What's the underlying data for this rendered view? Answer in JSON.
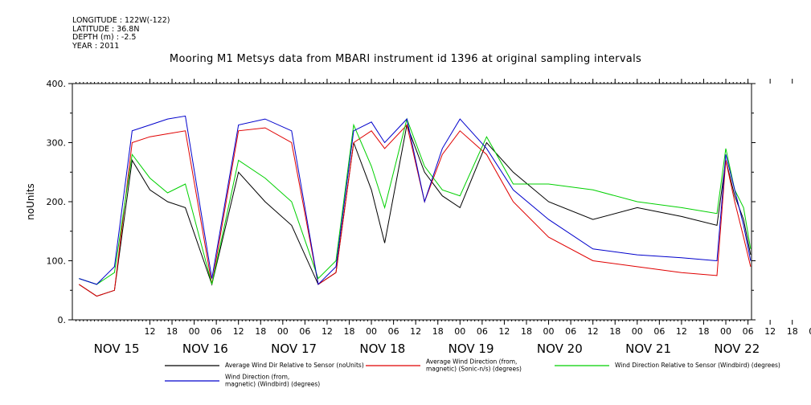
{
  "header": {
    "meta_lines": [
      "LONGITUDE : 122W(-122)",
      "LATITUDE : 36.8N",
      "DEPTH (m) : -2.5",
      "YEAR : 2011"
    ],
    "title": "Mooring M1 Metsys data from MBARI instrument id 1396 at original sampling intervals"
  },
  "colors": {
    "black": "#000000",
    "red": "#e00000",
    "green": "#00d000",
    "blue": "#0000cc"
  },
  "chart_data": {
    "type": "line",
    "ylabel": "noUnits",
    "ylim": [
      0,
      400
    ],
    "yticks": [
      0,
      100,
      200,
      300,
      400
    ],
    "xlim": [
      -0.375,
      7.29
    ],
    "hour_tick_labels": [
      "12",
      "18",
      "00",
      "06",
      "12",
      "18",
      "00",
      "06",
      "12",
      "18",
      "00",
      "06",
      "12",
      "18",
      "00",
      "06",
      "12",
      "18",
      "00",
      "06",
      "12",
      "18",
      "00",
      "06",
      "12",
      "18",
      "00",
      "06",
      "12",
      "18",
      "00",
      "06"
    ],
    "day_labels": [
      "NOV 15",
      "NOV 16",
      "NOV 17",
      "NOV 18",
      "NOV 19",
      "NOV 20",
      "NOV 21",
      "NOV 22"
    ],
    "legend": [
      {
        "label": "Average Wind Dir Relative to Sensor (noUnits)",
        "color": "#000000"
      },
      {
        "label": "Average Wind Direction (from,\nmagnetic) (Sonic-n/s) (degrees)",
        "color": "#e00000"
      },
      {
        "label": "Wind Direction Relative to Sensor (Windbird) (degrees)",
        "color": "#00d000"
      },
      {
        "label": "Wind Direction (from,\nmagnetic) (Windbird) (degrees)",
        "color": "#0000cc"
      }
    ],
    "series": [
      {
        "name": "Average Wind Dir Relative to Sensor (noUnits)",
        "color": "#000000",
        "x": [
          -0.3,
          -0.1,
          0.1,
          0.3,
          0.5,
          0.7,
          0.9,
          1.2,
          1.5,
          1.8,
          2.1,
          2.4,
          2.6,
          2.8,
          3.0,
          3.15,
          3.4,
          3.6,
          3.8,
          4.0,
          4.3,
          4.6,
          5.0,
          5.5,
          6.0,
          6.5,
          6.9,
          7.0,
          7.1,
          7.2,
          7.28
        ],
        "y": [
          60,
          40,
          50,
          270,
          220,
          200,
          190,
          60,
          250,
          200,
          160,
          60,
          80,
          300,
          220,
          130,
          330,
          250,
          210,
          190,
          300,
          250,
          200,
          170,
          190,
          175,
          160,
          270,
          210,
          170,
          110
        ]
      },
      {
        "name": "Average Wind Direction (from, magnetic) (Sonic-n/s) (degrees)",
        "color": "#e00000",
        "x": [
          -0.3,
          -0.1,
          0.1,
          0.3,
          0.5,
          0.7,
          0.9,
          1.2,
          1.5,
          1.8,
          2.1,
          2.4,
          2.6,
          2.8,
          3.0,
          3.15,
          3.4,
          3.6,
          3.8,
          4.0,
          4.3,
          4.6,
          5.0,
          5.5,
          6.0,
          6.5,
          6.9,
          7.0,
          7.1,
          7.2,
          7.28
        ],
        "y": [
          60,
          40,
          50,
          300,
          310,
          315,
          320,
          60,
          320,
          325,
          300,
          60,
          80,
          300,
          320,
          290,
          330,
          200,
          280,
          320,
          280,
          200,
          140,
          100,
          90,
          80,
          75,
          270,
          200,
          140,
          90
        ]
      },
      {
        "name": "Wind Direction Relative to Sensor (Windbird) (degrees)",
        "color": "#00d000",
        "x": [
          -0.3,
          -0.1,
          0.1,
          0.3,
          0.5,
          0.7,
          0.9,
          1.2,
          1.5,
          1.8,
          2.1,
          2.4,
          2.6,
          2.8,
          3.0,
          3.15,
          3.4,
          3.6,
          3.8,
          4.0,
          4.3,
          4.6,
          5.0,
          5.5,
          6.0,
          6.5,
          6.9,
          7.0,
          7.1,
          7.2,
          7.28
        ],
        "y": [
          70,
          60,
          80,
          280,
          240,
          215,
          230,
          60,
          270,
          240,
          200,
          70,
          100,
          330,
          260,
          190,
          340,
          260,
          220,
          210,
          310,
          230,
          230,
          220,
          200,
          190,
          180,
          290,
          220,
          190,
          120
        ]
      },
      {
        "name": "Wind Direction (from, magnetic) (Windbird) (degrees)",
        "color": "#0000cc",
        "x": [
          -0.3,
          -0.1,
          0.1,
          0.3,
          0.5,
          0.7,
          0.9,
          1.2,
          1.5,
          1.8,
          2.1,
          2.4,
          2.6,
          2.8,
          3.0,
          3.15,
          3.4,
          3.6,
          3.8,
          4.0,
          4.3,
          4.6,
          5.0,
          5.5,
          6.0,
          6.5,
          6.9,
          7.0,
          7.1,
          7.2,
          7.28
        ],
        "y": [
          70,
          60,
          90,
          320,
          330,
          340,
          345,
          70,
          330,
          340,
          320,
          60,
          90,
          320,
          335,
          300,
          340,
          200,
          290,
          340,
          290,
          220,
          170,
          120,
          110,
          105,
          100,
          280,
          220,
          160,
          100
        ]
      }
    ]
  }
}
